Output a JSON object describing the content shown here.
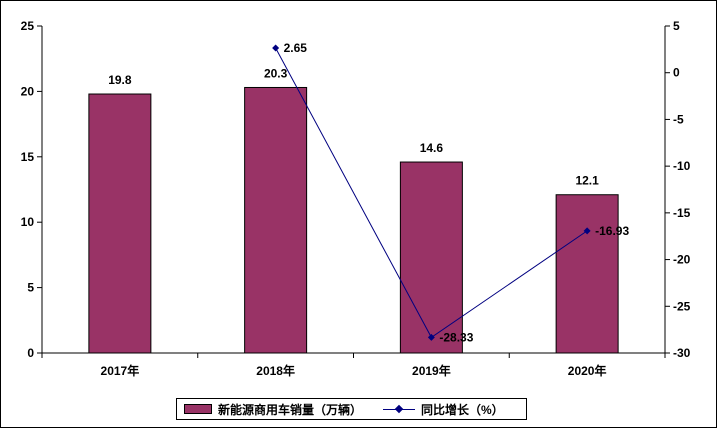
{
  "chart_data": {
    "type": "bar",
    "categories": [
      "2017年",
      "2018年",
      "2019年",
      "2020年"
    ],
    "series": [
      {
        "name": "新能源商用车销量（万辆）",
        "type": "bar",
        "axis": "left",
        "color": "#993366",
        "values": [
          19.8,
          20.3,
          14.6,
          12.1
        ],
        "labels": [
          "19.8",
          "20.3",
          "14.6",
          "12.1"
        ]
      },
      {
        "name": "同比增长（%）",
        "type": "line",
        "axis": "right",
        "color": "#000080",
        "values": [
          null,
          2.65,
          -28.33,
          -16.93
        ],
        "labels": [
          "",
          "2.65",
          "-28.33",
          "-16.93"
        ]
      }
    ],
    "y_left": {
      "min": 0,
      "max": 25,
      "ticks": [
        "0",
        "5",
        "10",
        "15",
        "20",
        "25"
      ]
    },
    "y_right": {
      "min": -30,
      "max": 5,
      "ticks": [
        "5",
        "0",
        "-5",
        "-10",
        "-15",
        "-20",
        "-25",
        "-30"
      ]
    },
    "grid": false,
    "legend_position": "bottom"
  }
}
